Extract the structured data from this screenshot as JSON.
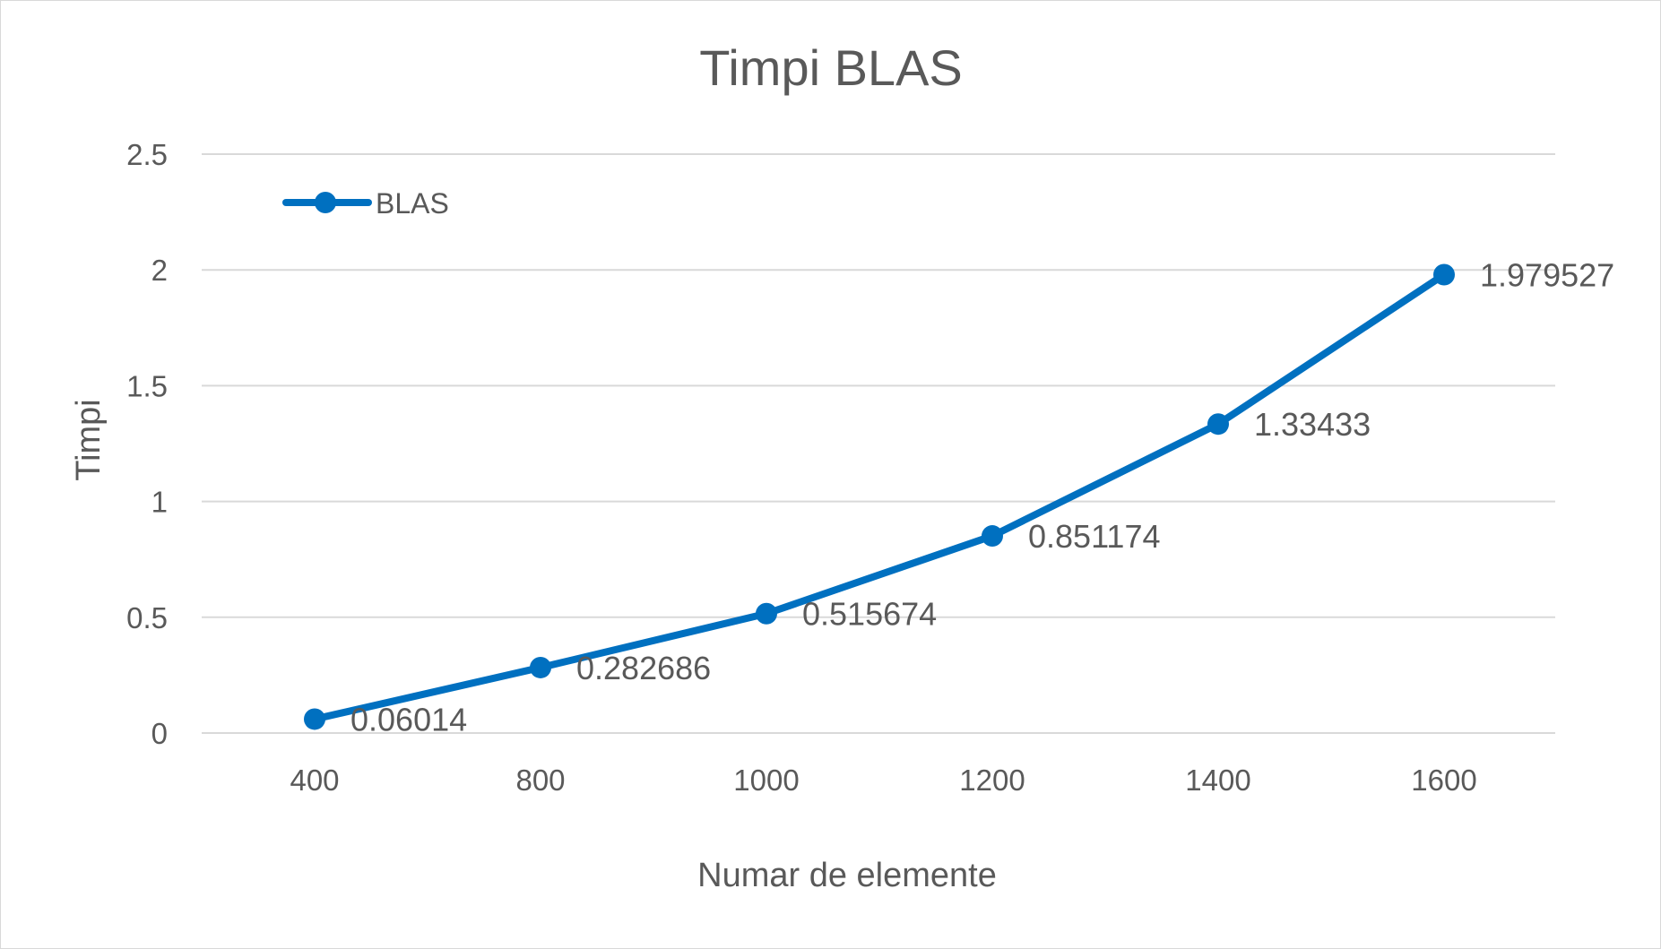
{
  "chart_data": {
    "type": "line",
    "title": "Timpi BLAS",
    "xlabel": "Numar de elemente",
    "ylabel": "Timpi",
    "categories": [
      "400",
      "800",
      "1000",
      "1200",
      "1400",
      "1600"
    ],
    "series": [
      {
        "name": "BLAS",
        "values": [
          0.06014,
          0.282686,
          0.515674,
          0.851174,
          1.33433,
          1.979527
        ],
        "labels": [
          "0.06014",
          "0.282686",
          "0.515674",
          "0.851174",
          "1.33433",
          "1.979527"
        ],
        "color": "#0070c0"
      }
    ],
    "ylim": [
      0,
      2.5
    ],
    "yticks": [
      "0",
      "0.5",
      "1",
      "1.5",
      "2",
      "2.5"
    ],
    "grid": true,
    "legend": "top-left"
  }
}
